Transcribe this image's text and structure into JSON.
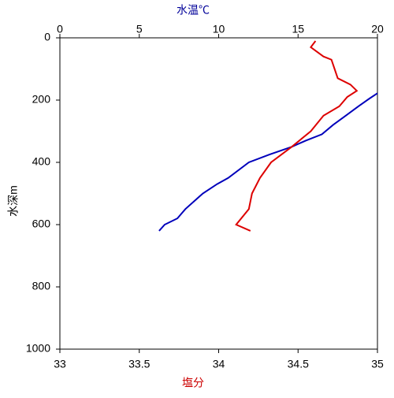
{
  "chart_data": {
    "type": "line",
    "x_label": "塩分",
    "x2_label": "水温℃",
    "y_label": "水深m",
    "xlim": [
      33,
      35
    ],
    "xticks": [
      33,
      33.5,
      34,
      34.5,
      35
    ],
    "x2lim": [
      0,
      20
    ],
    "x2ticks": [
      0,
      5,
      10,
      15,
      20
    ],
    "ylim": [
      0,
      1000
    ],
    "yticks": [
      0,
      200,
      400,
      600,
      800,
      1000
    ],
    "y_inverted": true,
    "x_label_color": "#cc0000",
    "x2_label_color": "#000099",
    "series": [
      {
        "color": "#0000bb",
        "axis": "x2",
        "x": [
          20,
          19.5,
          18.8,
          18,
          17.2,
          16.5,
          15.5,
          14.6,
          13.2,
          11.9,
          10.6,
          9.9,
          9,
          7.9,
          7.4,
          6.6,
          6.25
        ],
        "y": [
          178,
          195,
          220,
          250,
          280,
          310,
          330,
          350,
          375,
          400,
          450,
          470,
          500,
          550,
          580,
          600,
          620
        ]
      },
      {
        "color": "#dd0000",
        "axis": "x",
        "x": [
          34.61,
          34.58,
          34.66,
          34.71,
          34.73,
          34.75,
          34.83,
          34.87,
          34.81,
          34.76,
          34.66,
          34.58,
          34.46,
          34.33,
          34.26,
          34.21,
          34.19,
          34.11,
          34.2
        ],
        "y": [
          10,
          30,
          60,
          70,
          100,
          130,
          150,
          170,
          190,
          220,
          250,
          300,
          350,
          400,
          450,
          500,
          550,
          600,
          620
        ]
      }
    ]
  }
}
